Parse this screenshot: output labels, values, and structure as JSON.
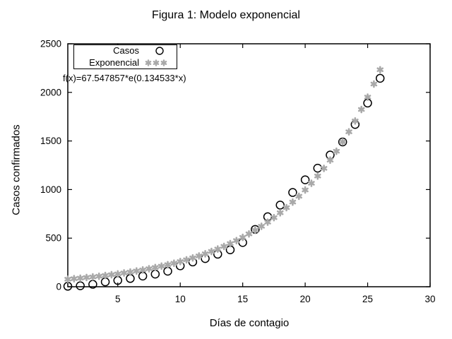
{
  "figure": {
    "title": "Figura 1: Modelo exponencial",
    "background_color": "#ffffff",
    "annotation": "f(x)=67.547857*e(0.134533*x)"
  },
  "chart_data": {
    "type": "scatter",
    "title": "Figura 1: Modelo exponencial",
    "xlabel": "Días de contagio",
    "ylabel": "Casos confirmados",
    "xlim": [
      1,
      30
    ],
    "ylim": [
      0,
      2500
    ],
    "xticks": [
      5,
      10,
      15,
      20,
      25,
      30
    ],
    "yticks": [
      0,
      500,
      1000,
      1500,
      2000,
      2500
    ],
    "grid": false,
    "tick_style": "inward-mirrored",
    "annotation": "f(x)=67.547857*e(0.134533*x)",
    "legend": {
      "position": "top-left",
      "border": true
    },
    "series": [
      {
        "name": "Casos",
        "marker": "open-circle",
        "color": "#000000",
        "points": [
          [
            1,
            5
          ],
          [
            2,
            10
          ],
          [
            3,
            25
          ],
          [
            4,
            50
          ],
          [
            5,
            65
          ],
          [
            6,
            85
          ],
          [
            7,
            110
          ],
          [
            8,
            130
          ],
          [
            9,
            160
          ],
          [
            10,
            215
          ],
          [
            11,
            255
          ],
          [
            12,
            290
          ],
          [
            13,
            335
          ],
          [
            14,
            380
          ],
          [
            15,
            455
          ],
          [
            16,
            590
          ],
          [
            17,
            720
          ],
          [
            18,
            840
          ],
          [
            19,
            970
          ],
          [
            20,
            1100
          ],
          [
            21,
            1220
          ],
          [
            22,
            1355
          ],
          [
            23,
            1490
          ],
          [
            24,
            1670
          ],
          [
            25,
            1890
          ],
          [
            26,
            2145
          ]
        ]
      },
      {
        "name": "Exponencial",
        "marker": "asterisk",
        "color": "#a9a9a9",
        "points": [
          [
            1,
            77
          ],
          [
            1.5,
            83
          ],
          [
            2,
            88
          ],
          [
            2.5,
            95
          ],
          [
            3,
            101
          ],
          [
            3.5,
            108
          ],
          [
            4,
            116
          ],
          [
            4.5,
            124
          ],
          [
            5,
            132
          ],
          [
            5.5,
            142
          ],
          [
            6,
            151
          ],
          [
            6.5,
            162
          ],
          [
            7,
            173
          ],
          [
            7.5,
            185
          ],
          [
            8,
            198
          ],
          [
            8.5,
            212
          ],
          [
            9,
            227
          ],
          [
            9.5,
            242
          ],
          [
            10,
            259
          ],
          [
            10.5,
            277
          ],
          [
            11,
            297
          ],
          [
            11.5,
            317
          ],
          [
            12,
            339
          ],
          [
            12.5,
            363
          ],
          [
            13,
            388
          ],
          [
            13.5,
            415
          ],
          [
            14,
            444
          ],
          [
            14.5,
            475
          ],
          [
            15,
            508
          ],
          [
            15.5,
            544
          ],
          [
            16,
            581
          ],
          [
            16.5,
            622
          ],
          [
            17,
            665
          ],
          [
            17.5,
            711
          ],
          [
            18,
            761
          ],
          [
            18.5,
            814
          ],
          [
            19,
            871
          ],
          [
            19.5,
            931
          ],
          [
            20,
            996
          ],
          [
            20.5,
            1065
          ],
          [
            21,
            1139
          ],
          [
            21.5,
            1218
          ],
          [
            22,
            1303
          ],
          [
            22.5,
            1394
          ],
          [
            23,
            1491
          ],
          [
            23.5,
            1594
          ],
          [
            24,
            1706
          ],
          [
            24.5,
            1824
          ],
          [
            25,
            1951
          ],
          [
            25.5,
            2086
          ],
          [
            26,
            2233
          ]
        ]
      }
    ]
  }
}
